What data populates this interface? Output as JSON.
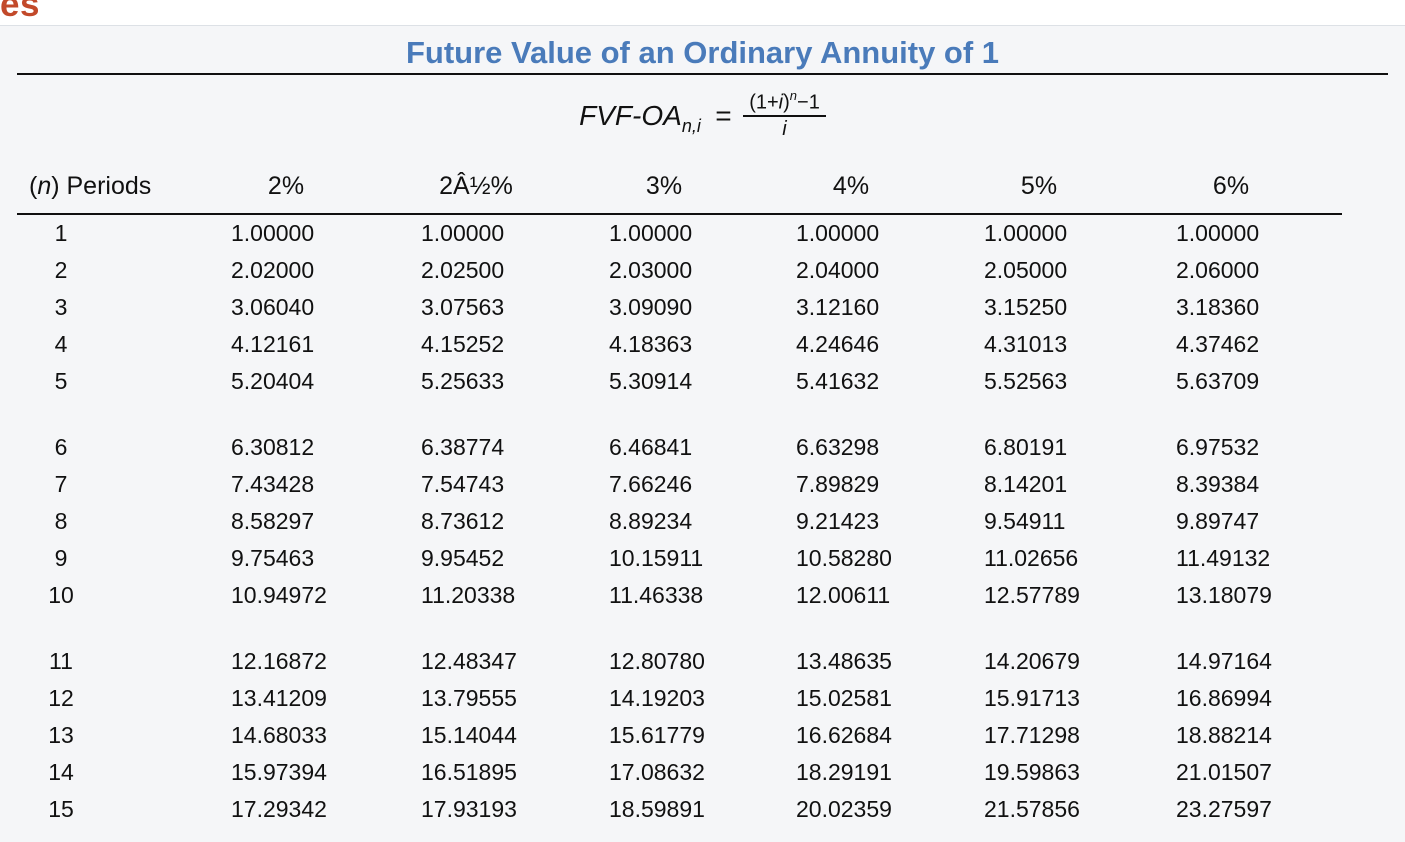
{
  "page": {
    "heading_fragment": "es"
  },
  "colors": {
    "heading_fragment": "#c2492a",
    "title_accent": "#4a7bba",
    "panel_background": "#f5f6f8",
    "rule": "#101010",
    "panel_top_border": "#dde1e6"
  },
  "panel": {
    "title": "Future Value of an Ordinary Annuity of 1",
    "formula": {
      "lhs_name": "FVF-OA",
      "lhs_subscript": "n,i",
      "equals": "=",
      "num_prefix": "(1+",
      "num_var": "i",
      "num_close": ")",
      "num_exponent": "n",
      "num_suffix": "−1",
      "denominator": "i"
    },
    "table": {
      "periods_header": {
        "open": "(",
        "var": "n",
        "close": ") Periods"
      },
      "rate_headers": [
        "2%",
        "2Â½%",
        "3%",
        "4%",
        "5%",
        "6%"
      ],
      "row_groups": [
        [
          {
            "period": "1",
            "values": [
              "1.00000",
              "1.00000",
              "1.00000",
              "1.00000",
              "1.00000",
              "1.00000"
            ]
          },
          {
            "period": "2",
            "values": [
              "2.02000",
              "2.02500",
              "2.03000",
              "2.04000",
              "2.05000",
              "2.06000"
            ]
          },
          {
            "period": "3",
            "values": [
              "3.06040",
              "3.07563",
              "3.09090",
              "3.12160",
              "3.15250",
              "3.18360"
            ]
          },
          {
            "period": "4",
            "values": [
              "4.12161",
              "4.15252",
              "4.18363",
              "4.24646",
              "4.31013",
              "4.37462"
            ]
          },
          {
            "period": "5",
            "values": [
              "5.20404",
              "5.25633",
              "5.30914",
              "5.41632",
              "5.52563",
              "5.63709"
            ]
          }
        ],
        [
          {
            "period": "6",
            "values": [
              "6.30812",
              "6.38774",
              "6.46841",
              "6.63298",
              "6.80191",
              "6.97532"
            ]
          },
          {
            "period": "7",
            "values": [
              "7.43428",
              "7.54743",
              "7.66246",
              "7.89829",
              "8.14201",
              "8.39384"
            ]
          },
          {
            "period": "8",
            "values": [
              "8.58297",
              "8.73612",
              "8.89234",
              "9.21423",
              "9.54911",
              "9.89747"
            ]
          },
          {
            "period": "9",
            "values": [
              "9.75463",
              "9.95452",
              "10.15911",
              "10.58280",
              "11.02656",
              "11.49132"
            ]
          },
          {
            "period": "10",
            "values": [
              "10.94972",
              "11.20338",
              "11.46338",
              "12.00611",
              "12.57789",
              "13.18079"
            ]
          }
        ],
        [
          {
            "period": "11",
            "values": [
              "12.16872",
              "12.48347",
              "12.80780",
              "13.48635",
              "14.20679",
              "14.97164"
            ]
          },
          {
            "period": "12",
            "values": [
              "13.41209",
              "13.79555",
              "14.19203",
              "15.02581",
              "15.91713",
              "16.86994"
            ]
          },
          {
            "period": "13",
            "values": [
              "14.68033",
              "15.14044",
              "15.61779",
              "16.62684",
              "17.71298",
              "18.88214"
            ]
          },
          {
            "period": "14",
            "values": [
              "15.97394",
              "16.51895",
              "17.08632",
              "18.29191",
              "19.59863",
              "21.01507"
            ]
          },
          {
            "period": "15",
            "values": [
              "17.29342",
              "17.93193",
              "18.59891",
              "20.02359",
              "21.57856",
              "23.27597"
            ]
          }
        ]
      ]
    }
  }
}
